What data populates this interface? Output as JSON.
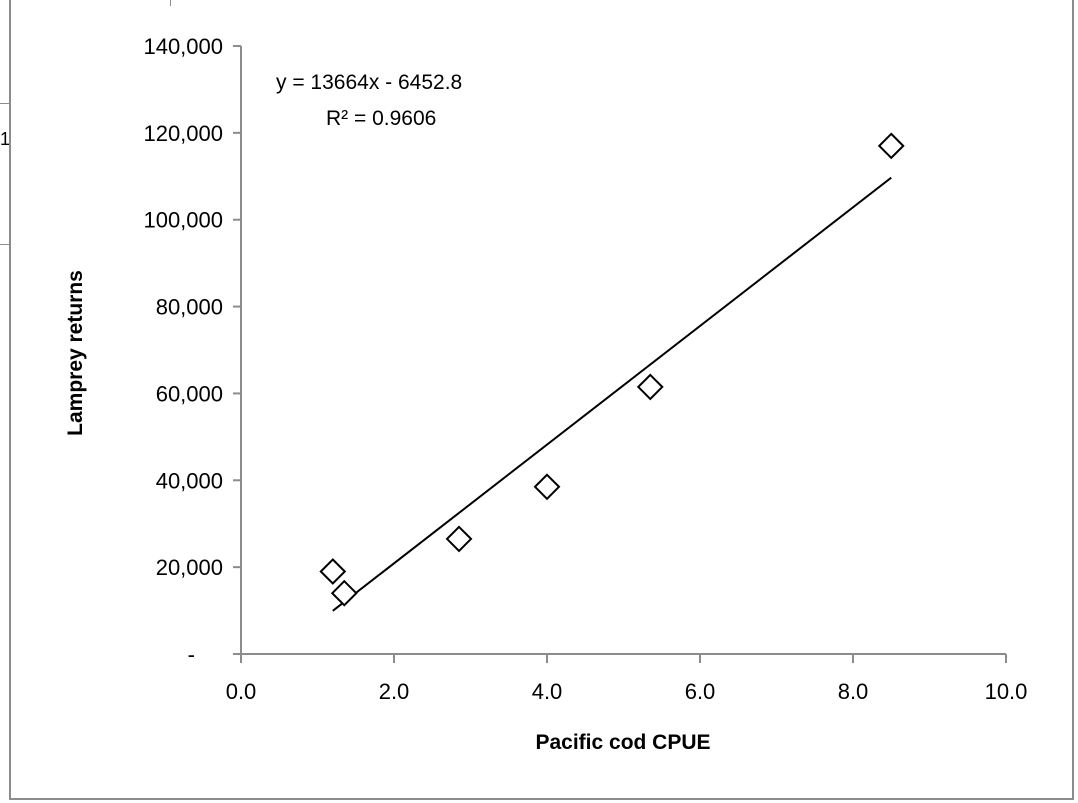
{
  "background": {
    "fragment_text": "1"
  },
  "chart_data": {
    "type": "scatter",
    "title": "",
    "xlabel": "Pacific cod CPUE",
    "ylabel": "Lamprey returns",
    "xlim": [
      0,
      10
    ],
    "ylim": [
      0,
      140000
    ],
    "x_ticks": [
      {
        "value": 0,
        "label": "0.0"
      },
      {
        "value": 2,
        "label": "2.0"
      },
      {
        "value": 4,
        "label": "4.0"
      },
      {
        "value": 6,
        "label": "6.0"
      },
      {
        "value": 8,
        "label": "8.0"
      },
      {
        "value": 10,
        "label": "10.0"
      }
    ],
    "y_ticks": [
      {
        "value": 0,
        "label": "-"
      },
      {
        "value": 20000,
        "label": "20,000"
      },
      {
        "value": 40000,
        "label": "40,000"
      },
      {
        "value": 60000,
        "label": "60,000"
      },
      {
        "value": 80000,
        "label": "80,000"
      },
      {
        "value": 100000,
        "label": "100,000"
      },
      {
        "value": 120000,
        "label": "120,000"
      },
      {
        "value": 140000,
        "label": "140,000"
      }
    ],
    "points": [
      {
        "x": 1.2,
        "y": 19000
      },
      {
        "x": 1.35,
        "y": 14000
      },
      {
        "x": 2.85,
        "y": 26500
      },
      {
        "x": 4.0,
        "y": 38500
      },
      {
        "x": 5.35,
        "y": 61500
      },
      {
        "x": 8.5,
        "y": 117000
      }
    ],
    "trendline": {
      "slope": 13664,
      "intercept": -6452.8,
      "x_start": 1.2,
      "x_end": 8.5,
      "equation_label": "y = 13664x - 6452.8",
      "r2_label": "R² = 0.9606"
    },
    "marker": "diamond-open",
    "grid": false,
    "legend": "none",
    "colors": {
      "marker_stroke": "#000000",
      "line": "#000000",
      "axis": "#8c8c8c"
    }
  }
}
